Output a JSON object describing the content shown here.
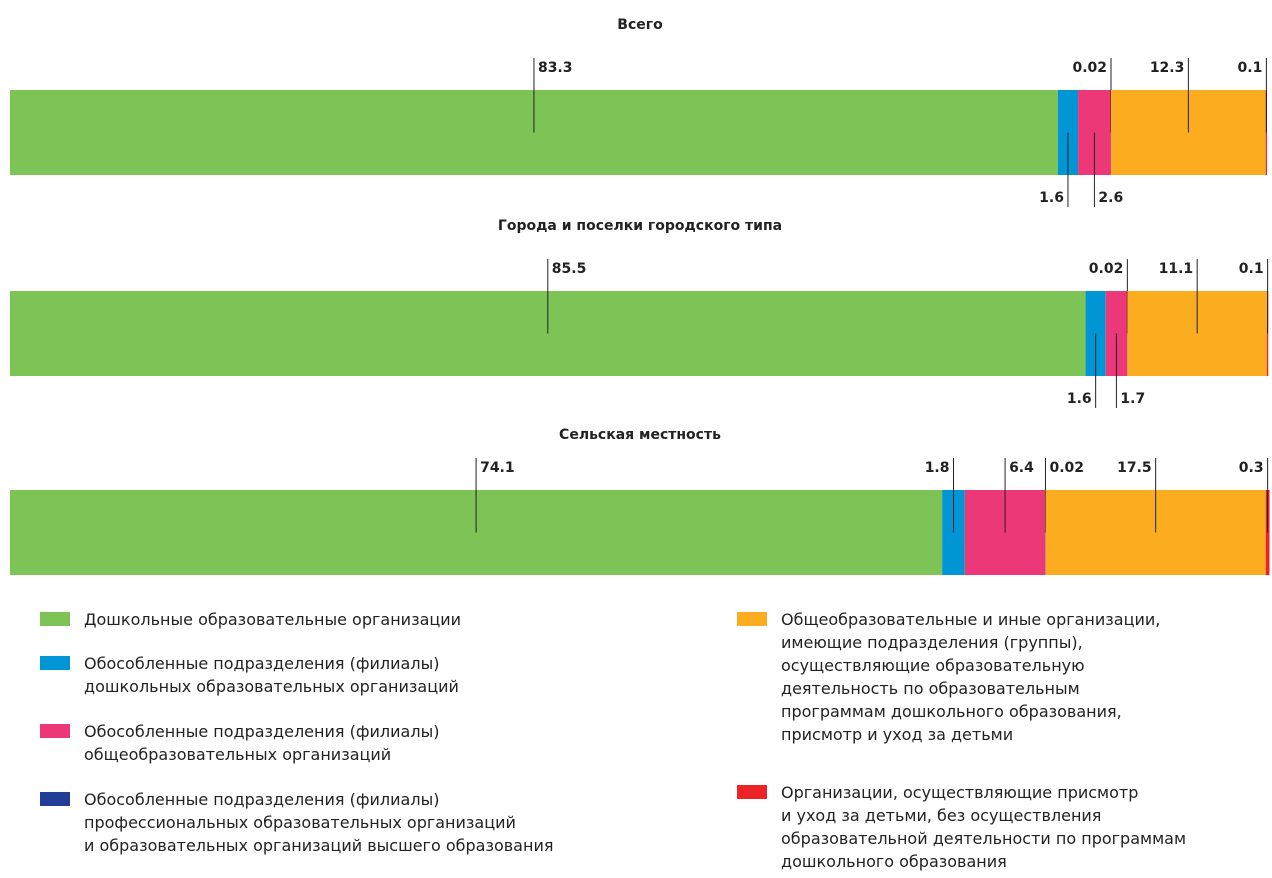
{
  "chart_data": {
    "type": "bar",
    "orientation": "horizontal",
    "stacked": true,
    "categories": [
      "Всего",
      "Города и поселки городского типа",
      "Сельская местность"
    ],
    "xlim": [
      0,
      100
    ],
    "series": [
      {
        "name": "Дошкольные образовательные организации",
        "color": "#7dc355",
        "values": [
          83.3,
          85.5,
          74.1
        ]
      },
      {
        "name": "Обособленные подразделения (филиалы)\nдошкольных образовательных организаций",
        "color": "#0096d6",
        "values": [
          1.6,
          1.6,
          1.8
        ]
      },
      {
        "name": "Обособленные подразделения (филиалы)\nобщеобразовательных организаций",
        "color": "#ec3878",
        "values": [
          2.6,
          1.7,
          6.4
        ]
      },
      {
        "name": "Обособленные подразделения (филиалы)\nпрофессиональных образовательных организаций\nи образовательных организаций высшего образования",
        "color": "#233e98",
        "values": [
          0.02,
          0.02,
          0.02
        ]
      },
      {
        "name": "Общеобразовательные и иные организации,\nимеющие подразделения (группы),\nосуществляющие образовательную\nдеятельность по образовательным\nпрограммам дошкольного образования,\nприсмотр и уход за детьми",
        "color": "#fbad1f",
        "values": [
          12.3,
          11.1,
          17.5
        ]
      },
      {
        "name": "Организации, осуществляющие присмотр\nи уход за детьми, без осуществления\nобразовательной деятельности по программам\nдошкольного образования",
        "color": "#ec2227",
        "values": [
          0.1,
          0.1,
          0.3
        ]
      }
    ]
  }
}
